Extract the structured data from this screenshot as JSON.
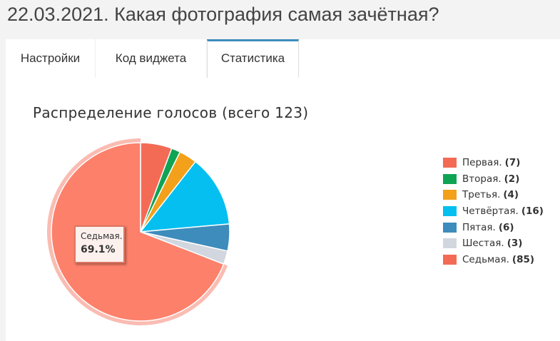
{
  "page": {
    "title": "22.03.2021. Какая фотография самая зачётная?"
  },
  "tabs": [
    {
      "label": "Настройки",
      "active": false
    },
    {
      "label": "Код виджета",
      "active": false
    },
    {
      "label": "Статистика",
      "active": true
    }
  ],
  "chart_data": {
    "type": "pie",
    "title": "Распределение голосов (всего 123)",
    "total": 123,
    "slices": [
      {
        "name": "Первая.",
        "value": 7,
        "value_label": "(7)",
        "color": "#f36b55"
      },
      {
        "name": "Вторая.",
        "value": 2,
        "value_label": "(2)",
        "color": "#0fa454"
      },
      {
        "name": "Третья.",
        "value": 4,
        "value_label": "(4)",
        "color": "#f3a01a"
      },
      {
        "name": "Четвёртая.",
        "value": 16,
        "value_label": "(16)",
        "color": "#05bff0"
      },
      {
        "name": "Пятая.",
        "value": 6,
        "value_label": "(6)",
        "color": "#3d8cbc"
      },
      {
        "name": "Шестая.",
        "value": 3,
        "value_label": "(3)",
        "color": "#d2d6de"
      },
      {
        "name": "Седьмая.",
        "value": 85,
        "value_label": "(85)",
        "color": "#f36b55"
      }
    ],
    "hovered_index": 6,
    "hovered_color": "#fd806b",
    "tooltip": {
      "name": "Седьмая.",
      "percent": "69.1%"
    },
    "legend_position": "right"
  }
}
